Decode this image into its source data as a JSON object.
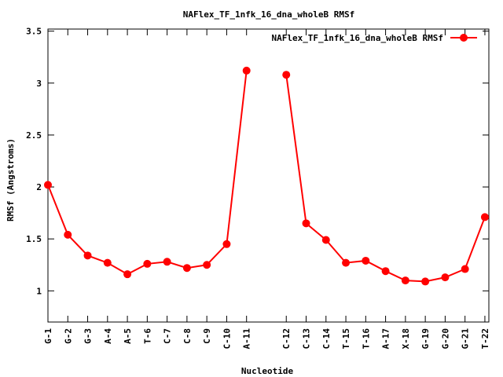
{
  "chart_data": {
    "type": "line",
    "title": "NAFlex_TF_1nfk_16_dna_wholeB RMSf",
    "xlabel": "Nucleotide",
    "ylabel": "RMSf (Angstroms)",
    "ylim": [
      0.7,
      3.52
    ],
    "yticks": [
      1,
      1.5,
      2,
      2.5,
      3,
      3.5
    ],
    "ytick_labels": [
      "1",
      "1.5",
      "2",
      "2.5",
      "3",
      "3.5"
    ],
    "grid": false,
    "legend_position": "top-right",
    "categories": [
      "G-1",
      "G-2",
      "G-3",
      "A-4",
      "A-5",
      "T-6",
      "C-7",
      "C-8",
      "C-9",
      "C-10",
      "A-11",
      "C-12",
      "C-13",
      "C-14",
      "T-15",
      "T-16",
      "A-17",
      "X-18",
      "G-19",
      "G-20",
      "G-21",
      "T-22"
    ],
    "x": [
      1,
      2,
      3,
      4,
      5,
      6,
      7,
      8,
      9,
      10,
      11,
      13,
      14,
      15,
      16,
      17,
      18,
      19,
      20,
      21,
      22,
      23
    ],
    "xlim": [
      1,
      23.2
    ],
    "series": [
      {
        "name": "NAFlex_TF_1nfk_16_dna_wholeB RMSf",
        "color": "#ff0000",
        "segments": [
          [
            2.02,
            1.54,
            1.34,
            1.27,
            1.16,
            1.26,
            1.28,
            1.22,
            1.25,
            1.45,
            3.12
          ],
          [
            3.08,
            1.65,
            1.49,
            1.27,
            1.29,
            1.19,
            1.1,
            1.09,
            1.13,
            1.21,
            1.71
          ]
        ]
      }
    ]
  }
}
